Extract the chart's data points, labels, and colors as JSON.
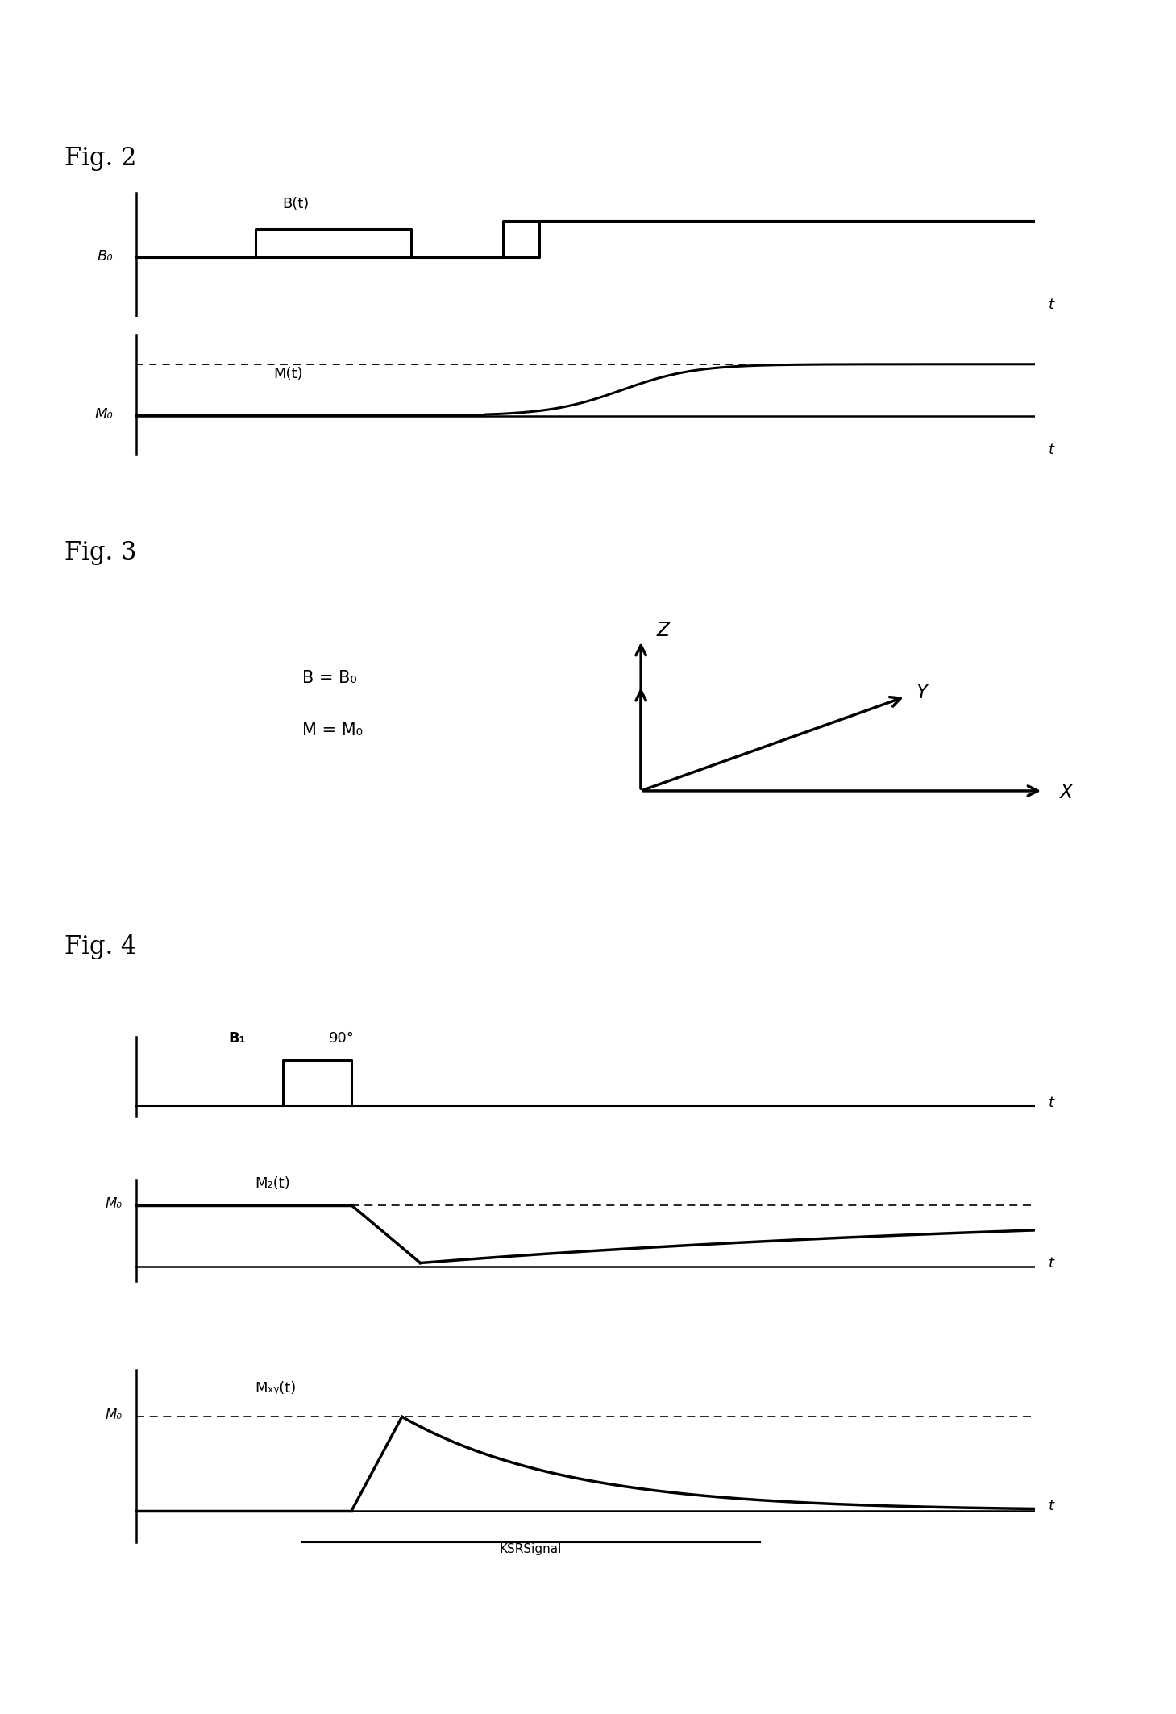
{
  "fig2_title": "Fig. 2",
  "fig3_title": "Fig. 3",
  "fig4_title": "Fig. 4",
  "background_color": "#ffffff",
  "line_color": "#000000",
  "fig2_Bt_label": "B(t)",
  "fig2_Mt_label": "M(t)",
  "fig2_B0_label": "B₀",
  "fig2_M0_label": "M₀",
  "fig2_t_label": "t",
  "fig3_Z_label": "Z",
  "fig3_Y_label": "Y",
  "fig3_X_label": "X",
  "fig3_eq1": "B = B₀",
  "fig3_eq2": "M = M₀",
  "fig4_B1_label": "B₁",
  "fig4_90_label": "90°",
  "fig4_Mzt_label": "M₂(t)",
  "fig4_M0z_label": "M₀",
  "fig4_Mxyt_label": "Mₓᵧ(t)",
  "fig4_M0xy_label": "M₀",
  "fig4_t_label": "t",
  "fig4_ksr_label": "KSRSignal"
}
